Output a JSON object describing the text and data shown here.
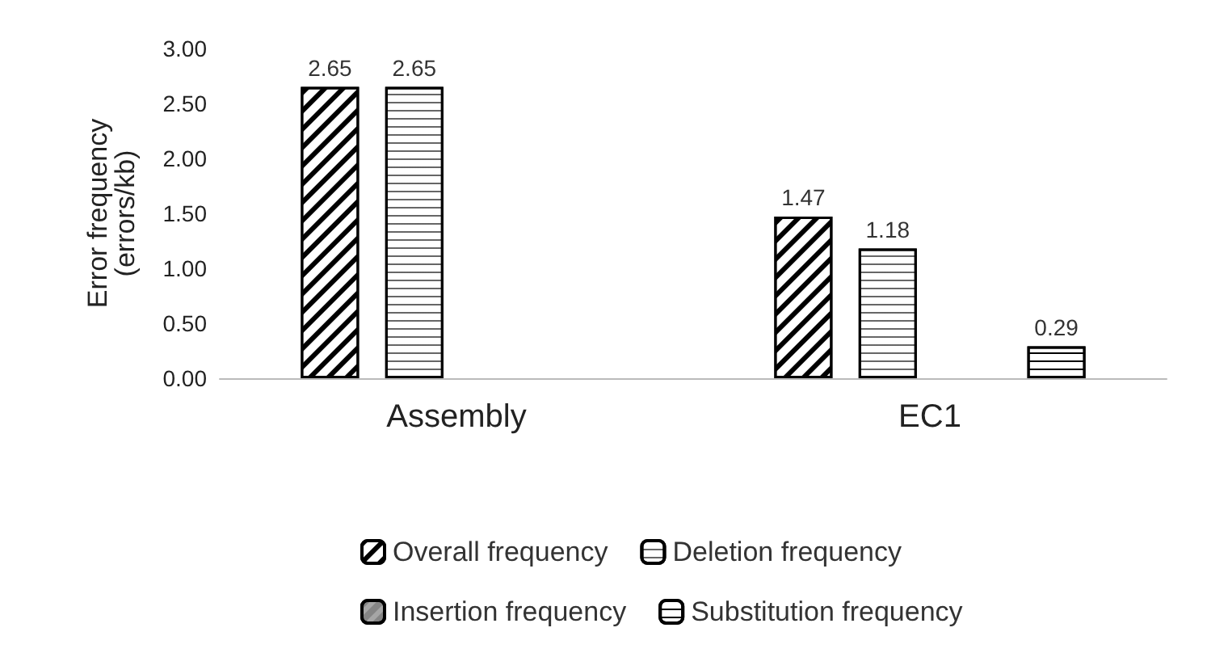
{
  "chart_data": {
    "type": "bar",
    "ylabel": "Error frequency\n(errors/kb)",
    "categories": [
      "Assembly",
      "EC1"
    ],
    "series": [
      {
        "name": "Overall frequency",
        "color": "#ffffff",
        "values": [
          2.65,
          1.47
        ]
      },
      {
        "name": "Deletion frequency",
        "color": "#ffffff",
        "values": [
          2.65,
          1.18
        ]
      },
      {
        "name": "Insertion frequency",
        "color": "#a6a6a6",
        "values": [
          null,
          null
        ]
      },
      {
        "name": "Substitution frequency",
        "color": "#ffffff",
        "values": [
          null,
          0.29
        ]
      }
    ],
    "ylim": [
      0,
      3
    ],
    "yticks": [
      {
        "value": 0,
        "label": "0.00"
      },
      {
        "value": 0.5,
        "label": "0.50"
      },
      {
        "value": 1,
        "label": "1.00"
      },
      {
        "value": 1.5,
        "label": "1.50"
      },
      {
        "value": 2,
        "label": "2.00"
      },
      {
        "value": 2.5,
        "label": "2.50"
      },
      {
        "value": 3,
        "label": "3.00"
      }
    ],
    "data_labels": true,
    "legend": "bottom",
    "grid": false
  }
}
